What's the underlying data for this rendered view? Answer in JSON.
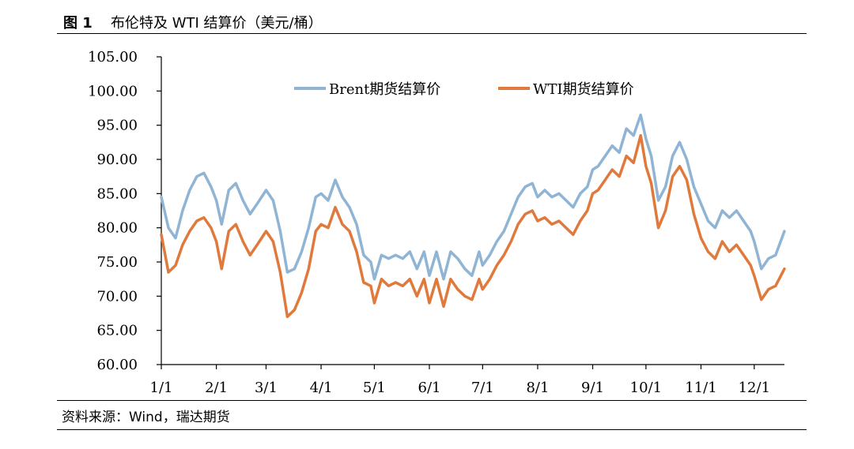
{
  "header": {
    "figure_label": "图 1",
    "title": "布伦特及 WTI 结算价（美元/桶）"
  },
  "footer": {
    "source": "资料来源：Wind，瑞达期货"
  },
  "colors": {
    "brent": "#8fb4d4",
    "wti": "#e07a3c"
  },
  "chart_data": {
    "type": "line",
    "title": "布伦特及 WTI 结算价（美元/桶）",
    "xlabel": "",
    "ylabel": "",
    "ylim": [
      60,
      105
    ],
    "yticks": [
      "60.00",
      "65.00",
      "70.00",
      "75.00",
      "80.00",
      "85.00",
      "90.00",
      "95.00",
      "100.00",
      "105.00"
    ],
    "xticks": [
      "1/1",
      "2/1",
      "3/1",
      "4/1",
      "5/1",
      "6/1",
      "7/1",
      "8/1",
      "9/1",
      "10/1",
      "11/1",
      "12/1"
    ],
    "x_unit": "day_of_year",
    "xlim": [
      0,
      351
    ],
    "xtick_positions": [
      0,
      31,
      59,
      90,
      120,
      151,
      181,
      212,
      243,
      273,
      304,
      334
    ],
    "legend_position": "top-center",
    "series": [
      {
        "name": "Brent期货结算价",
        "color_key": "brent",
        "x": [
          0,
          4,
          8,
          12,
          16,
          20,
          24,
          28,
          31,
          34,
          38,
          42,
          46,
          50,
          54,
          59,
          63,
          67,
          71,
          75,
          79,
          83,
          87,
          90,
          94,
          98,
          102,
          106,
          110,
          114,
          118,
          120,
          124,
          128,
          132,
          136,
          140,
          144,
          148,
          151,
          155,
          159,
          163,
          167,
          171,
          175,
          179,
          181,
          185,
          189,
          193,
          197,
          201,
          205,
          209,
          212,
          216,
          220,
          224,
          228,
          232,
          236,
          240,
          243,
          246,
          250,
          254,
          258,
          262,
          266,
          270,
          273,
          276,
          280,
          284,
          288,
          292,
          296,
          300,
          304,
          308,
          312,
          316,
          320,
          324,
          328,
          332,
          334,
          338,
          342,
          346,
          351
        ],
        "values": [
          84.5,
          80.0,
          78.5,
          82.5,
          85.5,
          87.5,
          88.0,
          86.0,
          84.0,
          80.5,
          85.5,
          86.5,
          84.0,
          82.0,
          83.5,
          85.5,
          84.0,
          79.5,
          73.5,
          74.0,
          76.5,
          80.0,
          84.5,
          85.0,
          84.0,
          87.0,
          84.5,
          83.0,
          80.5,
          76.0,
          75.0,
          72.5,
          76.0,
          75.5,
          76.0,
          75.5,
          76.5,
          74.0,
          76.5,
          73.0,
          76.5,
          72.5,
          76.5,
          75.5,
          74.0,
          73.0,
          76.5,
          74.5,
          76.0,
          78.0,
          79.5,
          82.0,
          84.5,
          86.0,
          86.5,
          84.5,
          85.5,
          84.5,
          85.0,
          84.0,
          83.0,
          85.0,
          86.0,
          88.5,
          89.0,
          90.5,
          92.0,
          91.0,
          94.5,
          93.5,
          96.5,
          93.0,
          90.5,
          84.0,
          86.0,
          90.5,
          92.5,
          90.0,
          86.0,
          83.5,
          81.0,
          80.0,
          82.5,
          81.5,
          82.5,
          81.0,
          79.5,
          78.0,
          74.0,
          75.5,
          76.0,
          79.5
        ]
      },
      {
        "name": "WTI期货结算价",
        "color_key": "wti",
        "x": [
          0,
          4,
          8,
          12,
          16,
          20,
          24,
          28,
          31,
          34,
          38,
          42,
          46,
          50,
          54,
          59,
          63,
          67,
          71,
          75,
          79,
          83,
          87,
          90,
          94,
          98,
          102,
          106,
          110,
          114,
          118,
          120,
          124,
          128,
          132,
          136,
          140,
          144,
          148,
          151,
          155,
          159,
          163,
          167,
          171,
          175,
          179,
          181,
          185,
          189,
          193,
          197,
          201,
          205,
          209,
          212,
          216,
          220,
          224,
          228,
          232,
          236,
          240,
          243,
          246,
          250,
          254,
          258,
          262,
          266,
          270,
          273,
          276,
          280,
          284,
          288,
          292,
          296,
          300,
          304,
          308,
          312,
          316,
          320,
          324,
          328,
          332,
          334,
          338,
          342,
          346,
          351
        ],
        "values": [
          79.0,
          73.5,
          74.5,
          77.5,
          79.5,
          81.0,
          81.5,
          80.0,
          78.0,
          74.0,
          79.5,
          80.5,
          78.0,
          76.0,
          77.5,
          79.5,
          78.0,
          73.5,
          67.0,
          68.0,
          70.5,
          74.0,
          79.5,
          80.5,
          80.0,
          83.0,
          80.5,
          79.5,
          76.5,
          72.0,
          71.5,
          69.0,
          72.5,
          71.5,
          72.0,
          71.5,
          72.5,
          70.0,
          72.5,
          69.0,
          72.5,
          68.5,
          72.5,
          71.0,
          70.0,
          69.5,
          72.5,
          71.0,
          72.5,
          74.5,
          76.0,
          78.0,
          80.5,
          82.0,
          82.5,
          81.0,
          81.5,
          80.5,
          81.0,
          80.0,
          79.0,
          81.0,
          82.5,
          85.0,
          85.5,
          87.0,
          88.5,
          87.5,
          90.5,
          89.5,
          93.5,
          89.0,
          86.5,
          80.0,
          82.5,
          87.5,
          89.0,
          87.0,
          82.0,
          78.5,
          76.5,
          75.5,
          78.0,
          76.5,
          77.5,
          76.0,
          74.5,
          73.0,
          69.5,
          71.0,
          71.5,
          74.0
        ]
      }
    ]
  }
}
